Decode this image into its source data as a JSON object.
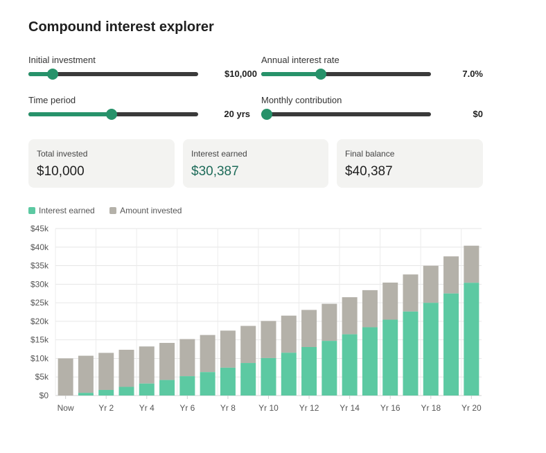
{
  "title": "Compound interest explorer",
  "controls": [
    {
      "label": "Initial investment",
      "value": "$10,000",
      "fraction": 0.12
    },
    {
      "label": "Annual interest rate",
      "value": "7.0%",
      "fraction": 0.34
    },
    {
      "label": "Time period",
      "value": "20 yrs",
      "fraction": 0.49
    },
    {
      "label": "Monthly contribution",
      "value": "$0",
      "fraction": 0.0
    }
  ],
  "cards": [
    {
      "label": "Total invested",
      "value": "$10,000"
    },
    {
      "label": "Interest earned",
      "value": "$30,387"
    },
    {
      "label": "Final balance",
      "value": "$40,387"
    }
  ],
  "colors": {
    "accent": "#27926a",
    "track": "#3a3a3a",
    "interest": "#5cc9a2",
    "invested": "#b4b1a9",
    "interest_text": "#1d6b59"
  },
  "chart_data": {
    "type": "bar",
    "stacked": true,
    "categories": [
      "Now",
      "Yr 1",
      "Yr 2",
      "Yr 3",
      "Yr 4",
      "Yr 5",
      "Yr 6",
      "Yr 7",
      "Yr 8",
      "Yr 9",
      "Yr 10",
      "Yr 11",
      "Yr 12",
      "Yr 13",
      "Yr 14",
      "Yr 15",
      "Yr 16",
      "Yr 17",
      "Yr 18",
      "Yr 19",
      "Yr 20"
    ],
    "x_tick_labels": [
      "Now",
      "Yr 2",
      "Yr 4",
      "Yr 6",
      "Yr 8",
      "Yr 10",
      "Yr 12",
      "Yr 14",
      "Yr 16",
      "Yr 18",
      "Yr 20"
    ],
    "series": [
      {
        "name": "Amount invested",
        "values": [
          10000,
          10000,
          10000,
          10000,
          10000,
          10000,
          10000,
          10000,
          10000,
          10000,
          10000,
          10000,
          10000,
          10000,
          10000,
          10000,
          10000,
          10000,
          10000,
          10000,
          10000
        ]
      },
      {
        "name": "Interest earned",
        "values": [
          0,
          723,
          1499,
          2332,
          3225,
          4183,
          5211,
          6314,
          7496,
          8765,
          10097,
          11533,
          13073,
          14727,
          16500,
          18402,
          20444,
          22634,
          24984,
          27506,
          30387
        ]
      }
    ],
    "y_ticks": [
      "$0",
      "$5k",
      "$10k",
      "$15k",
      "$20k",
      "$25k",
      "$30k",
      "$35k",
      "$40k",
      "$45k"
    ],
    "ylim": [
      0,
      45000
    ],
    "grid": true,
    "legend": "top-left"
  }
}
